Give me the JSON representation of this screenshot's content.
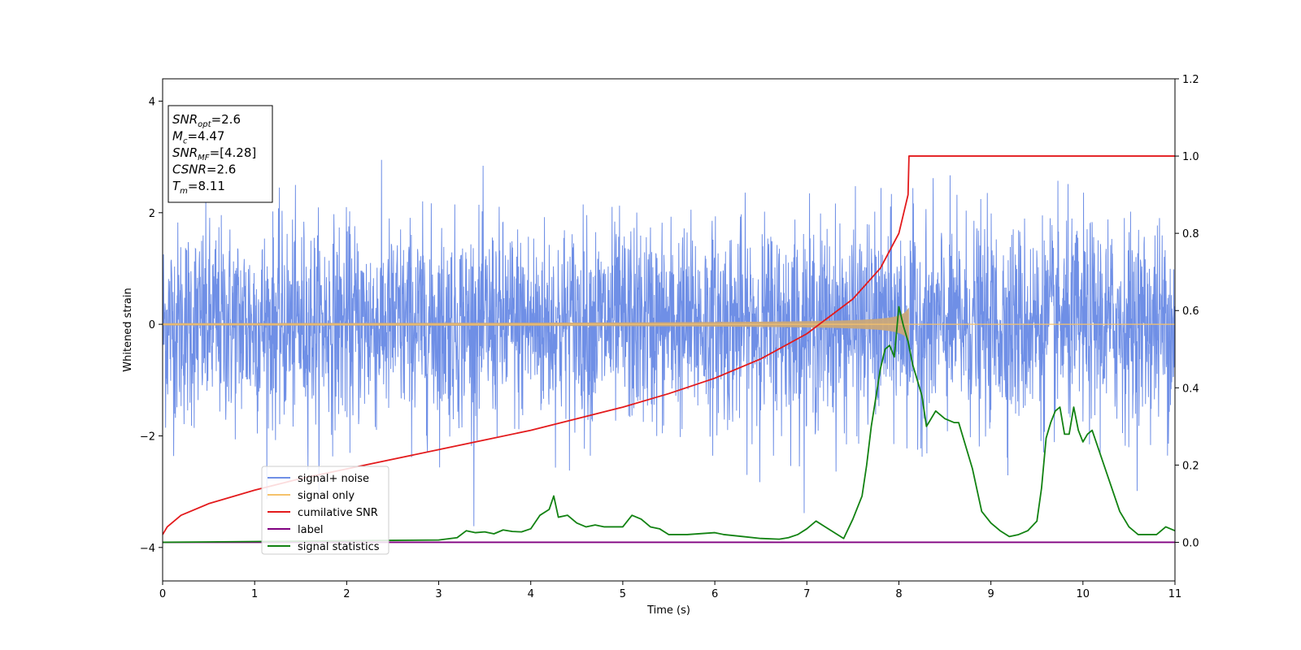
{
  "chart_data": {
    "type": "line",
    "xlabel": "Time (s)",
    "ylabel": "Whitened strain",
    "xlim": [
      0,
      11
    ],
    "ylim": [
      -4.6,
      4.4
    ],
    "y2lim": [
      -0.1,
      1.2
    ],
    "x_ticks": [
      0,
      1,
      2,
      3,
      4,
      5,
      6,
      7,
      8,
      9,
      10,
      11
    ],
    "y_ticks": [
      4,
      2,
      0,
      -2,
      -4
    ],
    "y_tick_labels": [
      "4",
      "2",
      "0",
      "−2",
      "−4"
    ],
    "y2_ticks": [
      1.2,
      1.0,
      0.8,
      0.6,
      0.4,
      0.2,
      0.0
    ],
    "y2_tick_labels": [
      "1.2",
      "1.0",
      "0.8",
      "0.6",
      "0.4",
      "0.2",
      "0.0"
    ],
    "legend_position": "lower-left",
    "colors": {
      "signal_noise": "#7793e8",
      "signal_only": "#f5c26b",
      "cumulative_snr": "#e31a1c",
      "label": "#800080",
      "signal_statistics": "#128212"
    },
    "series": [
      {
        "name": "signal+ noise",
        "axis": "left",
        "color": "#6f8fe6",
        "description_type": "noise",
        "approx_std": 0.9,
        "approx_range": [
          -4.15,
          4.05
        ]
      },
      {
        "name": "signal only",
        "axis": "left",
        "color": "#f5c26b",
        "description_type": "chirp",
        "chirp_end_time": 8.11,
        "peak_amplitude": 0.3
      },
      {
        "name": "cumilative SNR",
        "axis": "right",
        "color": "#e31a1c",
        "x": [
          0,
          0.05,
          0.2,
          0.5,
          1,
          1.5,
          2,
          2.5,
          3,
          3.5,
          4,
          4.5,
          5,
          5.5,
          6,
          6.5,
          7,
          7.5,
          7.8,
          8.0,
          8.1,
          8.11,
          9,
          10,
          11
        ],
        "values": [
          0.02,
          0.04,
          0.07,
          0.1,
          0.135,
          0.165,
          0.19,
          0.215,
          0.24,
          0.265,
          0.29,
          0.32,
          0.35,
          0.385,
          0.425,
          0.475,
          0.54,
          0.63,
          0.71,
          0.8,
          0.9,
          1.0,
          1.0,
          1.0,
          1.0
        ]
      },
      {
        "name": "label",
        "axis": "right",
        "color": "#800080",
        "x": [
          0,
          11
        ],
        "values": [
          0.0,
          0.0
        ]
      },
      {
        "name": "signal statistics",
        "axis": "right",
        "color": "#128212",
        "x": [
          0,
          1,
          2,
          2.5,
          3,
          3.2,
          3.3,
          3.4,
          3.5,
          3.6,
          3.7,
          3.8,
          3.9,
          4.0,
          4.1,
          4.2,
          4.25,
          4.3,
          4.4,
          4.5,
          4.6,
          4.7,
          4.8,
          4.9,
          5.0,
          5.1,
          5.2,
          5.3,
          5.4,
          5.5,
          5.7,
          6.0,
          6.1,
          6.3,
          6.5,
          6.7,
          6.8,
          6.9,
          7.0,
          7.1,
          7.2,
          7.3,
          7.4,
          7.5,
          7.6,
          7.65,
          7.7,
          7.8,
          7.85,
          7.9,
          7.95,
          8.0,
          8.05,
          8.1,
          8.15,
          8.2,
          8.25,
          8.3,
          8.35,
          8.4,
          8.5,
          8.6,
          8.65,
          8.7,
          8.8,
          8.9,
          9.0,
          9.1,
          9.2,
          9.3,
          9.4,
          9.5,
          9.55,
          9.6,
          9.65,
          9.7,
          9.75,
          9.8,
          9.85,
          9.9,
          9.95,
          10.0,
          10.05,
          10.1,
          10.2,
          10.3,
          10.4,
          10.5,
          10.6,
          10.7,
          10.8,
          10.9,
          11.0
        ],
        "values": [
          0.0,
          0.002,
          0.004,
          0.005,
          0.006,
          0.012,
          0.03,
          0.025,
          0.027,
          0.022,
          0.032,
          0.028,
          0.027,
          0.035,
          0.07,
          0.085,
          0.12,
          0.065,
          0.07,
          0.05,
          0.04,
          0.045,
          0.04,
          0.04,
          0.04,
          0.07,
          0.06,
          0.04,
          0.035,
          0.02,
          0.02,
          0.025,
          0.02,
          0.015,
          0.01,
          0.008,
          0.012,
          0.02,
          0.035,
          0.055,
          0.04,
          0.025,
          0.01,
          0.06,
          0.12,
          0.2,
          0.3,
          0.45,
          0.5,
          0.51,
          0.48,
          0.61,
          0.56,
          0.52,
          0.46,
          0.42,
          0.38,
          0.3,
          0.32,
          0.34,
          0.32,
          0.31,
          0.31,
          0.27,
          0.19,
          0.08,
          0.05,
          0.03,
          0.015,
          0.02,
          0.03,
          0.055,
          0.14,
          0.27,
          0.31,
          0.34,
          0.35,
          0.28,
          0.28,
          0.35,
          0.29,
          0.26,
          0.28,
          0.29,
          0.22,
          0.15,
          0.08,
          0.04,
          0.02,
          0.02,
          0.02,
          0.04,
          0.03
        ]
      }
    ],
    "annotation": {
      "lines": [
        {
          "base": "SNR",
          "sub": "opt",
          "value": "=2.6"
        },
        {
          "base": "M",
          "sub": "c",
          "value": "=4.47"
        },
        {
          "base": "SNR",
          "sub": "MF",
          "value": "=[4.28]"
        },
        {
          "base": "CSNR",
          "sub": "",
          "value": "=2.6"
        },
        {
          "base": "T",
          "sub": "m",
          "value": "=8.11"
        }
      ]
    }
  }
}
